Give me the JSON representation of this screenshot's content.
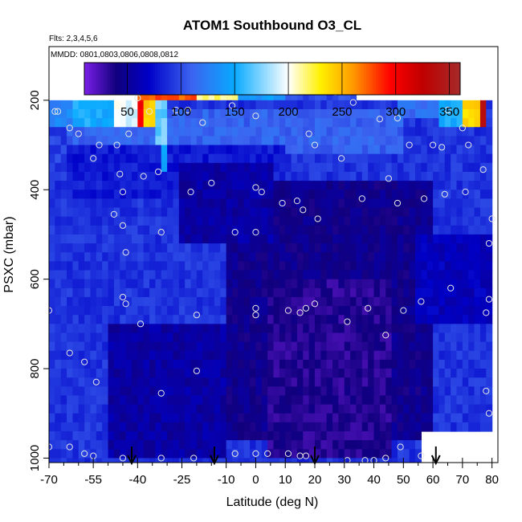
{
  "chart_data": {
    "type": "heatmap",
    "title": "ATOM1 Southbound O3_CL",
    "subtitle_flights": "Flts: 2,3,4,5,6",
    "subtitle_dates": "MMDD: 0801,0803,0806,0808,0812",
    "xlabel": "Latitude (deg N)",
    "ylabel": "PSXC (mbar)",
    "xlim": [
      -70,
      82
    ],
    "ylim": [
      1010,
      80
    ],
    "x_major_ticks": [
      -70,
      -55,
      -40,
      -25,
      -10,
      0,
      10,
      20,
      30,
      40,
      50,
      60,
      70,
      80
    ],
    "x_minor_ticks": [
      -65,
      -60,
      -50,
      -45,
      -35,
      -30,
      -20,
      -15,
      -5,
      5,
      15,
      25,
      35,
      45,
      55,
      65,
      75
    ],
    "y_ticks": [
      200,
      400,
      600,
      800,
      1000
    ],
    "colorbar": {
      "range": [
        10,
        360
      ],
      "ticks": [
        50,
        100,
        150,
        200,
        250,
        300,
        350
      ],
      "colors": [
        "#7a1fe6",
        "#11007e",
        "#0000c8",
        "#3c64f0",
        "#08aaff",
        "#ffffff",
        "#fff000",
        "#ff9a00",
        "#ff0000",
        "#c00000",
        "#a52a2a"
      ],
      "stops": [
        10,
        40,
        70,
        110,
        150,
        200,
        230,
        260,
        295,
        325,
        360
      ]
    },
    "grid": "off",
    "legend": "colorbar top",
    "base_value": 90,
    "value_field": [
      {
        "lat": [
          -64,
          50
        ],
        "p": [
          220,
          320
        ],
        "value": 110
      },
      {
        "lat": [
          -64,
          10
        ],
        "p": [
          300,
          420
        ],
        "value": 80
      },
      {
        "lat": [
          -10,
          60
        ],
        "p": [
          380,
          960
        ],
        "value": 45
      },
      {
        "lat": [
          5,
          45
        ],
        "p": [
          600,
          1000
        ],
        "value": 35
      },
      {
        "lat": [
          -25,
          5
        ],
        "p": [
          340,
          520
        ],
        "value": 55
      },
      {
        "lat": [
          -50,
          -10
        ],
        "p": [
          700,
          1000
        ],
        "value": 55
      },
      {
        "lat": [
          55,
          80
        ],
        "p": [
          500,
          700
        ],
        "value": 65
      }
    ],
    "high_ozone_cells": [
      {
        "lat": [
          -45,
          -20
        ],
        "p": [
          165,
          205
        ],
        "value": 275
      },
      {
        "lat": [
          -20,
          -5
        ],
        "p": [
          165,
          205
        ],
        "value": 215
      },
      {
        "lat": [
          -5,
          10
        ],
        "p": [
          165,
          205
        ],
        "value": 140
      },
      {
        "lat": [
          10,
          33
        ],
        "p": [
          165,
          205
        ],
        "value": 100
      },
      {
        "lat": [
          -70,
          -62
        ],
        "p": [
          205,
          260
        ],
        "value": 130
      },
      {
        "lat": [
          -62,
          -48
        ],
        "p": [
          205,
          250
        ],
        "value": 150
      },
      {
        "lat": [
          -48,
          -40
        ],
        "p": [
          205,
          260
        ],
        "value": 195
      },
      {
        "lat": [
          -40,
          -38
        ],
        "p": [
          205,
          265
        ],
        "value": 300
      },
      {
        "lat": [
          -38,
          -33
        ],
        "p": [
          205,
          262
        ],
        "value": 240
      },
      {
        "lat": [
          -33,
          -30
        ],
        "p": [
          205,
          300
        ],
        "value": 170
      },
      {
        "lat": [
          -32,
          -30
        ],
        "p": [
          300,
          350
        ],
        "value": 140
      },
      {
        "lat": [
          48,
          62
        ],
        "p": [
          205,
          240
        ],
        "value": 115
      },
      {
        "lat": [
          62,
          70
        ],
        "p": [
          205,
          260
        ],
        "value": 150
      },
      {
        "lat": [
          70,
          76
        ],
        "p": [
          205,
          262
        ],
        "value": 240
      },
      {
        "lat": [
          76,
          78
        ],
        "p": [
          205,
          265
        ],
        "value": 330
      },
      {
        "lat": [
          -70,
          -64
        ],
        "p": [
          260,
          330
        ],
        "value": 95
      }
    ],
    "data_extent": [
      {
        "lat": [
          -70,
          79
        ],
        "p": [
          205,
          1010
        ]
      },
      {
        "lat": [
          -40,
          33
        ],
        "p": [
          165,
          205
        ]
      }
    ],
    "blank_corner": {
      "lat": [
        57,
        82
      ],
      "p": [
        940,
        1010
      ]
    },
    "observations": [
      {
        "lat": -40,
        "p": 195
      },
      {
        "lat": -42,
        "p": 222
      },
      {
        "lat": -36,
        "p": 225
      },
      {
        "lat": -27,
        "p": 222
      },
      {
        "lat": -23,
        "p": 222
      },
      {
        "lat": -8,
        "p": 212
      },
      {
        "lat": 0,
        "p": 235
      },
      {
        "lat": 27,
        "p": 182
      },
      {
        "lat": 33,
        "p": 205
      },
      {
        "lat": -68,
        "p": 225
      },
      {
        "lat": -67,
        "p": 225
      },
      {
        "lat": -63,
        "p": 262
      },
      {
        "lat": -60,
        "p": 275
      },
      {
        "lat": -53,
        "p": 300
      },
      {
        "lat": -55,
        "p": 330
      },
      {
        "lat": -47,
        "p": 300
      },
      {
        "lat": -43,
        "p": 275
      },
      {
        "lat": -46,
        "p": 365
      },
      {
        "lat": -38,
        "p": 370
      },
      {
        "lat": -33,
        "p": 360
      },
      {
        "lat": -18,
        "p": 250
      },
      {
        "lat": 18,
        "p": 275
      },
      {
        "lat": 20,
        "p": 300
      },
      {
        "lat": 29,
        "p": 330
      },
      {
        "lat": 42,
        "p": 242
      },
      {
        "lat": 48,
        "p": 240
      },
      {
        "lat": 52,
        "p": 300
      },
      {
        "lat": 60,
        "p": 300
      },
      {
        "lat": 63,
        "p": 305
      },
      {
        "lat": 65,
        "p": 222
      },
      {
        "lat": 70,
        "p": 262
      },
      {
        "lat": 72,
        "p": 300
      },
      {
        "lat": 77,
        "p": 355
      },
      {
        "lat": -45,
        "p": 405
      },
      {
        "lat": -22,
        "p": 405
      },
      {
        "lat": -15,
        "p": 385
      },
      {
        "lat": 0,
        "p": 395
      },
      {
        "lat": 2,
        "p": 405
      },
      {
        "lat": 9,
        "p": 430
      },
      {
        "lat": 14,
        "p": 425
      },
      {
        "lat": 16,
        "p": 445
      },
      {
        "lat": 21,
        "p": 465
      },
      {
        "lat": 36,
        "p": 420
      },
      {
        "lat": 45,
        "p": 375
      },
      {
        "lat": 48,
        "p": 430
      },
      {
        "lat": 57,
        "p": 420
      },
      {
        "lat": 64,
        "p": 410
      },
      {
        "lat": 71,
        "p": 405
      },
      {
        "lat": 80,
        "p": 465
      },
      {
        "lat": -48,
        "p": 455
      },
      {
        "lat": -45,
        "p": 480
      },
      {
        "lat": -44,
        "p": 540
      },
      {
        "lat": -32,
        "p": 495
      },
      {
        "lat": -7,
        "p": 495
      },
      {
        "lat": 0,
        "p": 495
      },
      {
        "lat": 79,
        "p": 520
      },
      {
        "lat": -45,
        "p": 640
      },
      {
        "lat": -44,
        "p": 655
      },
      {
        "lat": -70,
        "p": 670
      },
      {
        "lat": -39,
        "p": 700
      },
      {
        "lat": -20,
        "p": 680
      },
      {
        "lat": 0,
        "p": 665
      },
      {
        "lat": 0,
        "p": 680
      },
      {
        "lat": 11,
        "p": 670
      },
      {
        "lat": 15,
        "p": 675
      },
      {
        "lat": 17,
        "p": 665
      },
      {
        "lat": 20,
        "p": 655
      },
      {
        "lat": 31,
        "p": 695
      },
      {
        "lat": 38,
        "p": 665
      },
      {
        "lat": 44,
        "p": 725
      },
      {
        "lat": 50,
        "p": 670
      },
      {
        "lat": 56,
        "p": 650
      },
      {
        "lat": 66,
        "p": 620
      },
      {
        "lat": 79,
        "p": 645
      },
      {
        "lat": 78,
        "p": 675
      },
      {
        "lat": -63,
        "p": 765
      },
      {
        "lat": -58,
        "p": 785
      },
      {
        "lat": -54,
        "p": 830
      },
      {
        "lat": -20,
        "p": 805
      },
      {
        "lat": -32,
        "p": 855
      },
      {
        "lat": 78,
        "p": 850
      },
      {
        "lat": 79,
        "p": 900
      },
      {
        "lat": -70,
        "p": 975
      },
      {
        "lat": -63,
        "p": 975
      },
      {
        "lat": -58,
        "p": 990
      },
      {
        "lat": -55,
        "p": 995
      },
      {
        "lat": -45,
        "p": 1000
      },
      {
        "lat": -32,
        "p": 1000
      },
      {
        "lat": -21,
        "p": 1000
      },
      {
        "lat": -7,
        "p": 990
      },
      {
        "lat": 0,
        "p": 990
      },
      {
        "lat": 4,
        "p": 990
      },
      {
        "lat": 11,
        "p": 990
      },
      {
        "lat": 15,
        "p": 995
      },
      {
        "lat": 17,
        "p": 995
      },
      {
        "lat": 31,
        "p": 1005
      },
      {
        "lat": 37,
        "p": 1005
      },
      {
        "lat": 40,
        "p": 1005
      },
      {
        "lat": 44,
        "p": 1000
      },
      {
        "lat": 49,
        "p": 975
      },
      {
        "lat": 56,
        "p": 995
      }
    ],
    "arrows_lat": [
      -42,
      -14,
      20,
      61
    ]
  }
}
